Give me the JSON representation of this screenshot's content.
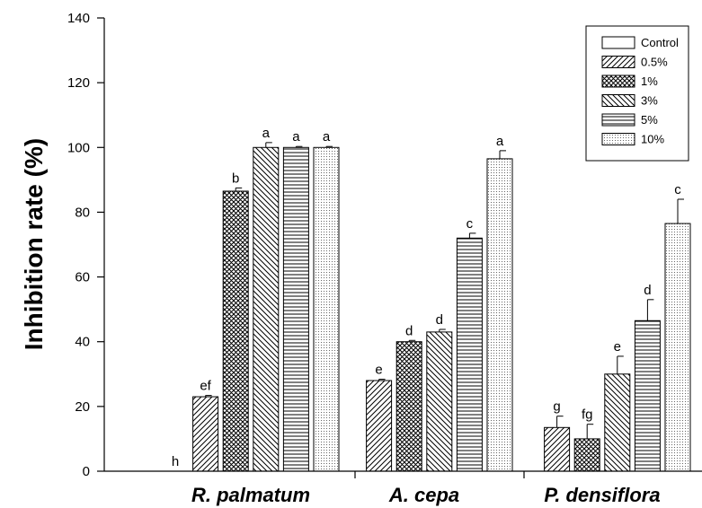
{
  "chart_data": {
    "type": "bar",
    "ylabel": "Inhibition rate (%)",
    "xlabel": "",
    "ylim": [
      0,
      140
    ],
    "yticks": [
      0,
      20,
      40,
      60,
      80,
      100,
      120,
      140
    ],
    "categories": [
      "R. palmatum",
      "A. cepa",
      "P. densiflora"
    ],
    "legend_position": "top-right",
    "series": [
      {
        "name": "Control",
        "pattern": "none",
        "values": [
          0,
          null,
          null
        ],
        "errors": [
          0,
          null,
          null
        ],
        "letters": [
          "h",
          null,
          null
        ]
      },
      {
        "name": "0.5%",
        "pattern": "diagonal-up",
        "values": [
          23,
          28,
          13.5
        ],
        "errors": [
          0.4,
          0.4,
          3.5
        ],
        "letters": [
          "ef",
          "e",
          "g"
        ]
      },
      {
        "name": "1%",
        "pattern": "crosshatch",
        "values": [
          86.5,
          40,
          10
        ],
        "errors": [
          1,
          0.4,
          4.5
        ],
        "letters": [
          "b",
          "d",
          "fg"
        ]
      },
      {
        "name": "3%",
        "pattern": "diagonal-down",
        "values": [
          100,
          43,
          30
        ],
        "errors": [
          1.5,
          0.8,
          5.5
        ],
        "letters": [
          "a",
          "d",
          "e"
        ]
      },
      {
        "name": "5%",
        "pattern": "horizontal",
        "values": [
          100,
          72,
          46.5
        ],
        "errors": [
          0.3,
          1.5,
          6.5
        ],
        "letters": [
          "a",
          "c",
          "d"
        ]
      },
      {
        "name": "10%",
        "pattern": "dots",
        "values": [
          100,
          96.5,
          76.5
        ],
        "errors": [
          0.3,
          2.5,
          7.5
        ],
        "letters": [
          "a",
          "a",
          "c"
        ]
      }
    ]
  }
}
